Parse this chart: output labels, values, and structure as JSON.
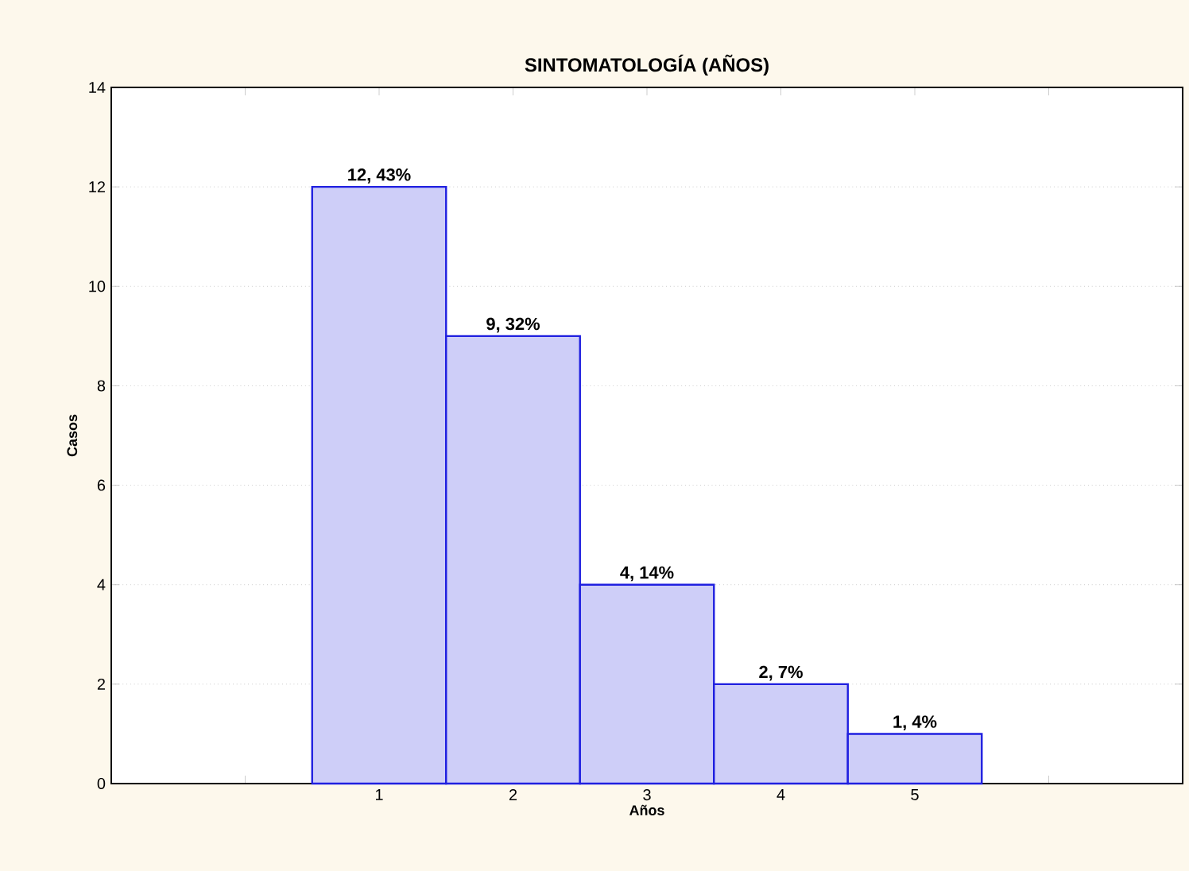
{
  "chart_data": {
    "type": "histogram",
    "title": "SINTOMATOLOGÍA (AÑOS)",
    "xlabel": "Años",
    "ylabel": "Casos",
    "bins": [
      0.5,
      1.5,
      2.5,
      3.5,
      4.5,
      5.5
    ],
    "values": [
      12,
      9,
      4,
      2,
      1
    ],
    "value_labels": [
      "12, 43%",
      "9, 32%",
      "4, 14%",
      "2, 7%",
      "1, 4%"
    ],
    "color": "#2020e0",
    "xlim": [
      -1,
      7
    ],
    "xticks": [
      {
        "value": 0,
        "label": null
      },
      1,
      2,
      3,
      4,
      5,
      {
        "value": 6,
        "label": null
      }
    ],
    "ylim": [
      0,
      14
    ],
    "yticks": [
      0,
      2,
      4,
      6,
      8,
      10,
      12,
      14
    ],
    "grid": "y"
  }
}
